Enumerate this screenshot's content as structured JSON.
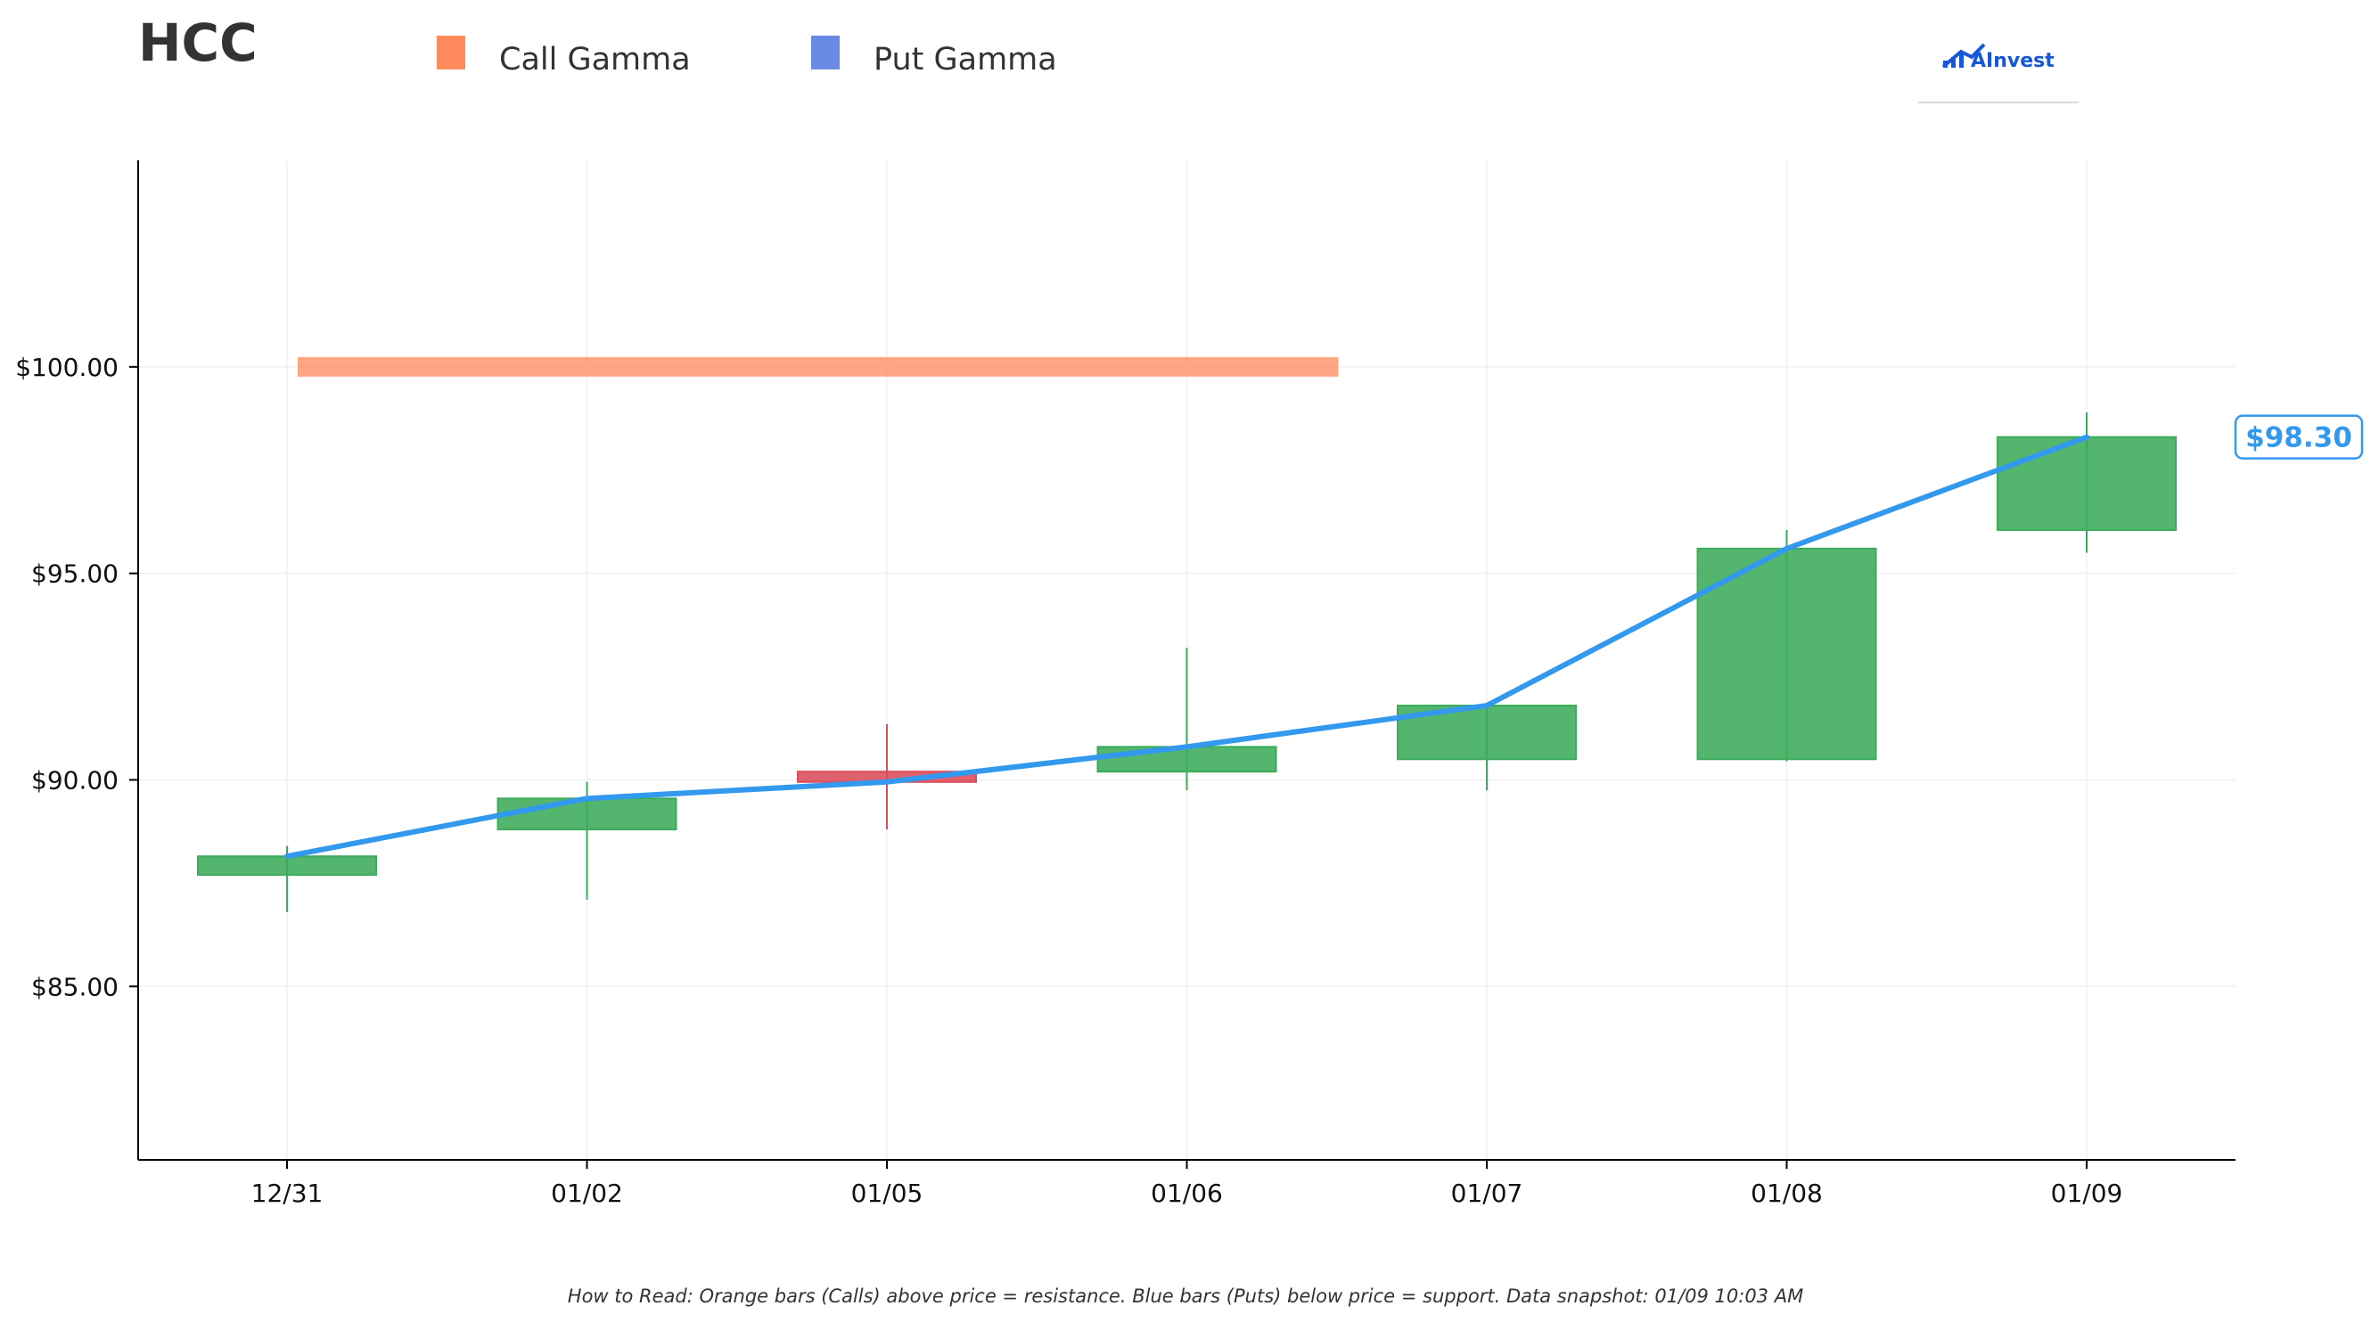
{
  "header": {
    "ticker": "HCC",
    "brand": "AInvest"
  },
  "legend": {
    "call_label": "Call Gamma",
    "put_label": "Put Gamma",
    "call_color": "#ff8a5c",
    "put_color": "#6a8ae6"
  },
  "footer": {
    "note": "How to Read: Orange bars (Calls) above price = resistance. Blue bars (Puts) below price = support. Data snapshot: 01/09 10:03 AM"
  },
  "chart_data": {
    "type": "candlestick",
    "categories": [
      "12/31",
      "01/02",
      "01/05",
      "01/06",
      "01/07",
      "01/08",
      "01/09"
    ],
    "candles": [
      {
        "date": "12/31",
        "open": 87.7,
        "high": 88.4,
        "low": 86.8,
        "close": 88.15
      },
      {
        "date": "01/02",
        "open": 88.8,
        "high": 89.95,
        "low": 87.1,
        "close": 89.55
      },
      {
        "date": "01/05",
        "open": 90.2,
        "high": 91.35,
        "low": 88.8,
        "close": 89.95
      },
      {
        "date": "01/06",
        "open": 90.2,
        "high": 93.2,
        "low": 89.75,
        "close": 90.8
      },
      {
        "date": "01/07",
        "open": 90.5,
        "high": 91.8,
        "low": 89.75,
        "close": 91.8
      },
      {
        "date": "01/08",
        "open": 90.5,
        "high": 96.05,
        "low": 90.45,
        "close": 95.6
      },
      {
        "date": "01/09",
        "open": 96.05,
        "high": 98.9,
        "low": 95.5,
        "close": 98.3
      }
    ],
    "price_line": {
      "values": [
        88.15,
        89.55,
        89.95,
        90.8,
        91.8,
        95.6,
        98.3
      ],
      "color": "#3399ee"
    },
    "gamma_levels": [
      {
        "type": "call",
        "price": 100.0,
        "from": "12/31",
        "to": "01/06"
      }
    ],
    "last_price_label": "$98.30",
    "y_ticks": [
      {
        "value": 85,
        "label": "$85.00"
      },
      {
        "value": 90,
        "label": "$90.00"
      },
      {
        "value": 95,
        "label": "$95.00"
      },
      {
        "value": 100,
        "label": "$100.00"
      }
    ],
    "ylim": [
      80.8,
      105.0
    ],
    "grid": true,
    "legend_position": "top",
    "up_color": "#3cab5a",
    "down_color": "#dc4b5a"
  }
}
